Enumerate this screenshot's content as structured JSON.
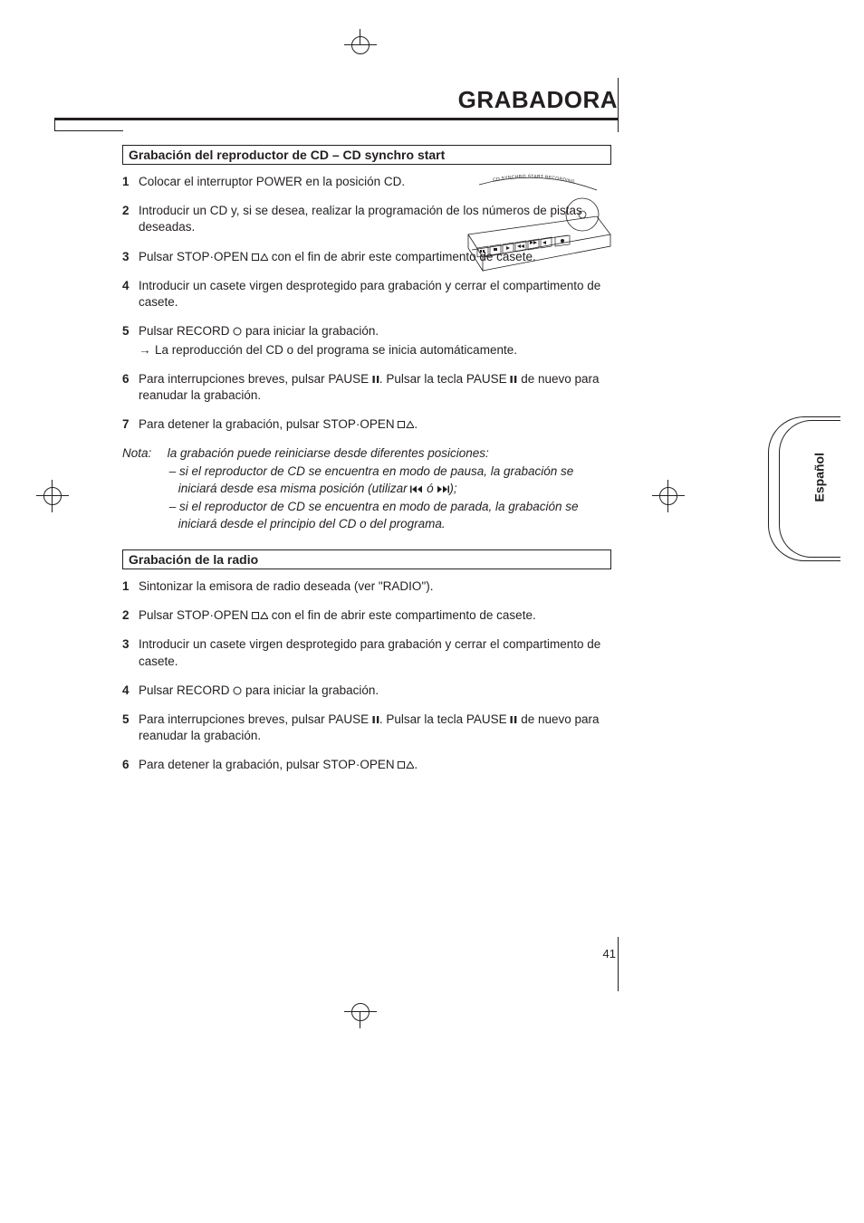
{
  "header": {
    "title": "GRABADORA"
  },
  "page_number": "41",
  "language_tab": "Español",
  "illustration_label": "CD SYNCHRO START RECORDING",
  "section1": {
    "title": "Grabación del reproductor de CD – CD synchro start",
    "steps": [
      {
        "n": "1",
        "text": "Colocar el interruptor POWER en la posición CD."
      },
      {
        "n": "2",
        "text": "Introducir un CD y, si se desea, realizar la programación de los números de pistas deseadas."
      },
      {
        "n": "3",
        "pre": "Pulsar STOP·OPEN ",
        "icon": "stop-open",
        "post": " con el fin de abrir este compartimento de casete."
      },
      {
        "n": "4",
        "text": "Introducir un casete virgen desprotegido para grabación y cerrar el compartimento de casete."
      },
      {
        "n": "5",
        "pre": "Pulsar RECORD ",
        "icon": "record",
        "post": " para iniciar la grabación.",
        "arrow": "La reproducción del CD o del programa se inicia automáticamente."
      },
      {
        "n": "6",
        "pre": "Para interrupciones breves, pulsar PAUSE ",
        "icon": "pause",
        "mid": ". Pulsar la tecla PAUSE ",
        "icon2": "pause",
        "post": " de nuevo para reanudar la grabación."
      },
      {
        "n": "7",
        "pre": "Para detener la grabación, pulsar STOP·OPEN ",
        "icon": "stop-open",
        "post": "."
      }
    ],
    "note_label": "Nota:",
    "note_intro": "la grabación puede reiniciarse desde diferentes posiciones:",
    "note_items": [
      {
        "pre": "– si el reproductor de CD se encuentra en modo de pausa, la grabación se iniciará desde esa misma posición (utilizar ",
        "icon": "prev",
        "mid": " ó ",
        "icon2": "next",
        "post": ");"
      },
      {
        "text": "– si el reproductor de CD se encuentra en modo de parada, la grabación se iniciará desde el principio del CD o del programa."
      }
    ]
  },
  "section2": {
    "title": "Grabación de la radio",
    "steps": [
      {
        "n": "1",
        "text": "Sintonizar la emisora de radio deseada (ver \"RADIO\")."
      },
      {
        "n": "2",
        "pre": "Pulsar STOP·OPEN ",
        "icon": "stop-open",
        "post": " con el fin de abrir este compartimento de casete."
      },
      {
        "n": "3",
        "text": "Introducir un casete virgen desprotegido para grabación y cerrar el compartimento de casete."
      },
      {
        "n": "4",
        "pre": "Pulsar RECORD ",
        "icon": "record",
        "post": " para iniciar la grabación."
      },
      {
        "n": "5",
        "pre": "Para interrupciones breves, pulsar PAUSE ",
        "icon": "pause",
        "mid": ". Pulsar la tecla PAUSE ",
        "icon2": "pause",
        "post": " de nuevo para reanudar la grabación."
      },
      {
        "n": "6",
        "pre": "Para detener la grabación, pulsar STOP·OPEN ",
        "icon": "stop-open",
        "post": "."
      }
    ]
  },
  "colors": {
    "text": "#231f20",
    "bg": "#ffffff"
  }
}
